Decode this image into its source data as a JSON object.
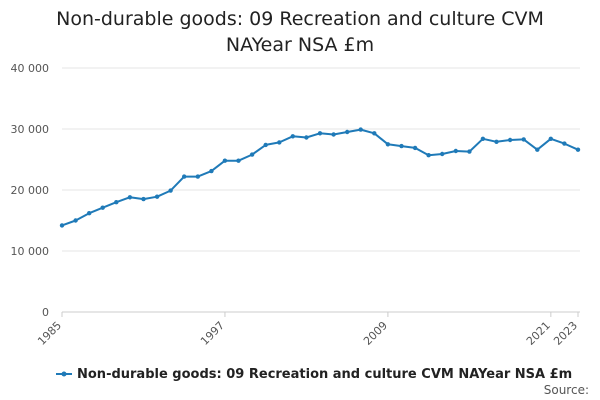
{
  "chart_data": {
    "type": "line",
    "title": "Non-durable goods: 09 Recreation and culture CVM NAYear NSA £m",
    "xlabel": "",
    "ylabel": "",
    "ylim": [
      0,
      40000
    ],
    "xlim": [
      1985,
      2023
    ],
    "y_ticks": [
      0,
      10000,
      20000,
      30000,
      40000
    ],
    "y_tick_labels": [
      "0",
      "10 000",
      "20 000",
      "30 000",
      "40 000"
    ],
    "x_ticks": [
      1985,
      1997,
      2009,
      2021,
      2023
    ],
    "x_tick_labels": [
      "1985",
      "1997",
      "2009",
      "2021",
      "2023"
    ],
    "grid": true,
    "legend_position": "bottom",
    "series": [
      {
        "name": "Non-durable goods: 09 Recreation and culture CVM NAYear NSA £m",
        "color": "#1f7ab8",
        "x": [
          1985,
          1986,
          1987,
          1988,
          1989,
          1990,
          1991,
          1992,
          1993,
          1994,
          1995,
          1996,
          1997,
          1998,
          1999,
          2000,
          2001,
          2002,
          2003,
          2004,
          2005,
          2006,
          2007,
          2008,
          2009,
          2010,
          2011,
          2012,
          2013,
          2014,
          2015,
          2016,
          2017,
          2018,
          2019,
          2020,
          2021,
          2022,
          2023
        ],
        "values": [
          14200,
          15000,
          16200,
          17100,
          18000,
          18800,
          18500,
          18900,
          19900,
          22200,
          22200,
          23100,
          24800,
          24800,
          25800,
          27400,
          27800,
          28800,
          28600,
          29300,
          29100,
          29500,
          29900,
          29300,
          27500,
          27200,
          26900,
          25700,
          25900,
          26400,
          26300,
          28400,
          27900,
          28200,
          28300,
          26600,
          28400,
          27600,
          26600
        ]
      }
    ],
    "source_label": "Source:"
  },
  "colors": {
    "line": "#1f7ab8",
    "grid": "#e6e6e6",
    "axis": "#cccccc"
  }
}
